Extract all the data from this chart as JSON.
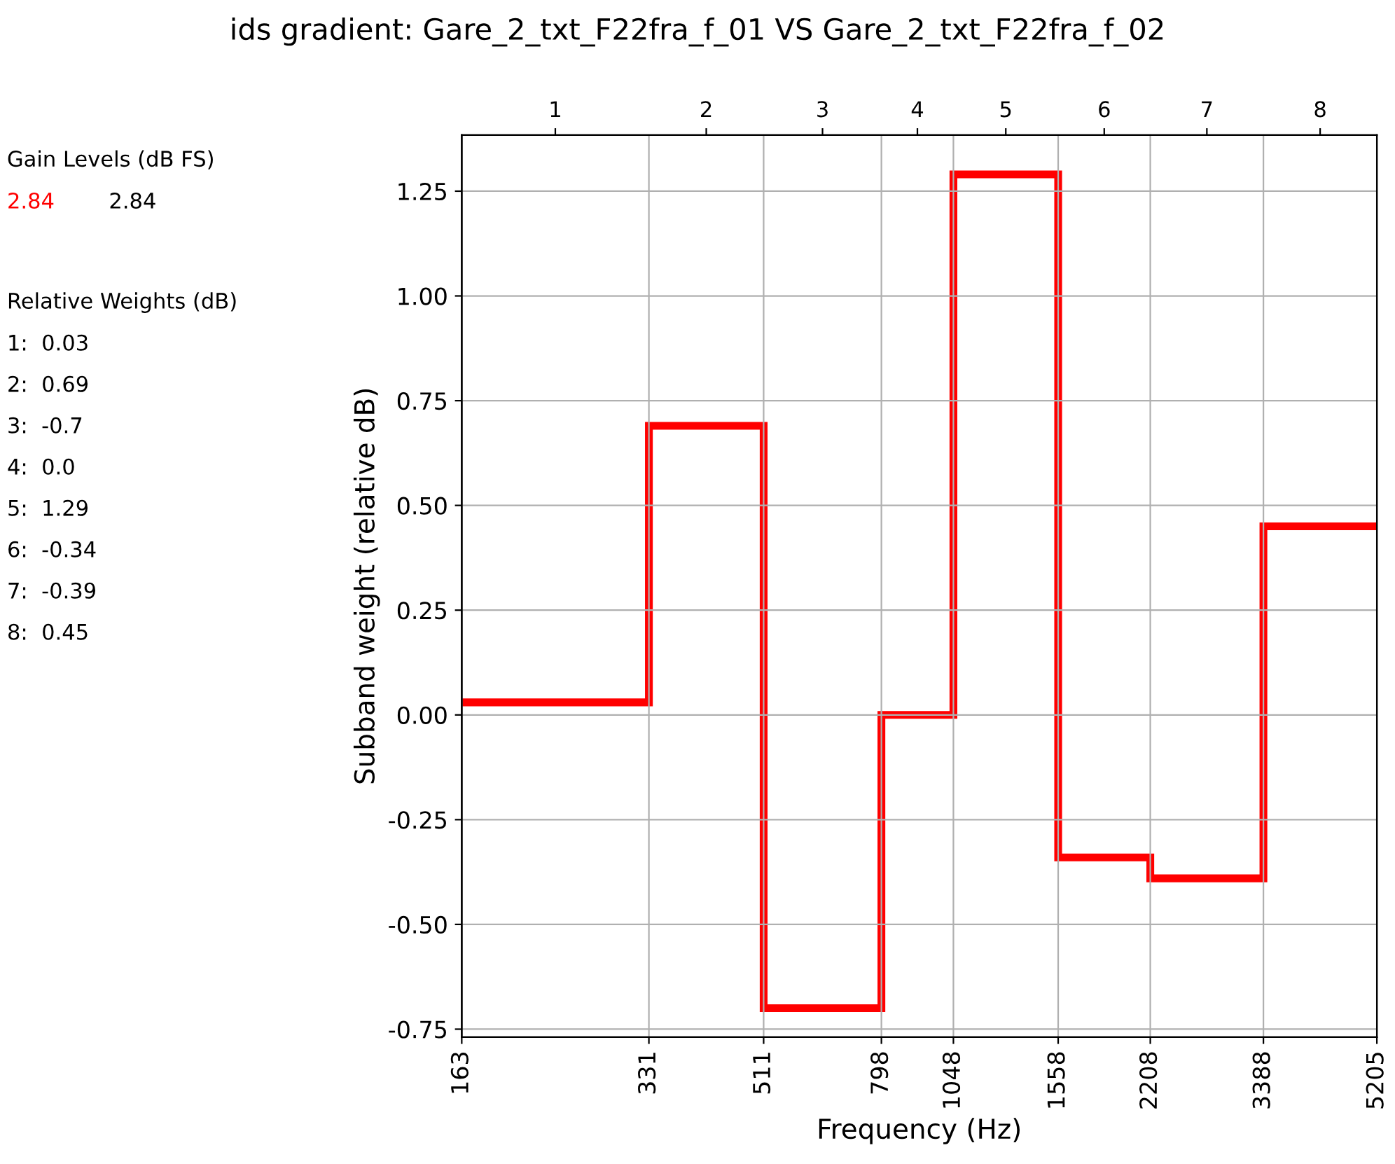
{
  "chart_data": {
    "type": "histogram",
    "title": "ids gradient: Gare_2_txt_F22fra_f_01 VS Gare_2_txt_F22fra_f_02",
    "xlabel": "Frequency (Hz)",
    "ylabel": "Subband weight (relative dB)",
    "bins": [
      163,
      331,
      511,
      798,
      1048,
      1558,
      2208,
      3388,
      5205
    ],
    "categories": [
      "1",
      "2",
      "3",
      "4",
      "5",
      "6",
      "7",
      "8"
    ],
    "series": [
      {
        "color": "#ff0000",
        "values": [
          0.03,
          0.69,
          -0.7,
          0.0,
          1.29,
          -0.34,
          -0.39,
          0.45
        ]
      }
    ],
    "log": "x",
    "xlim": [
      163,
      5205
    ],
    "xticks": [
      163,
      331,
      511,
      798,
      1048,
      1558,
      2208,
      3388,
      5205
    ],
    "ylim": [
      -0.769,
      1.384
    ],
    "yticks": [
      -0.75,
      {
        "value": -0.5,
        "label": "-0.50"
      },
      -0.25,
      {
        "value": 0.0,
        "label": "0.00"
      },
      0.25,
      {
        "value": 0.5,
        "label": "0.50"
      },
      0.75,
      {
        "value": 1.0,
        "label": "1.00"
      },
      1.25
    ],
    "grid": true,
    "annotations": [
      "Gain Levels (dB FS)",
      "2.84",
      "2.84",
      "Relative Weights (dB)",
      "1:  0.03",
      "2:  0.69",
      "3:  -0.7",
      "4:  0.0",
      "5:  1.29",
      "6:  -0.34",
      "7:  -0.39",
      "8:  0.45"
    ]
  }
}
